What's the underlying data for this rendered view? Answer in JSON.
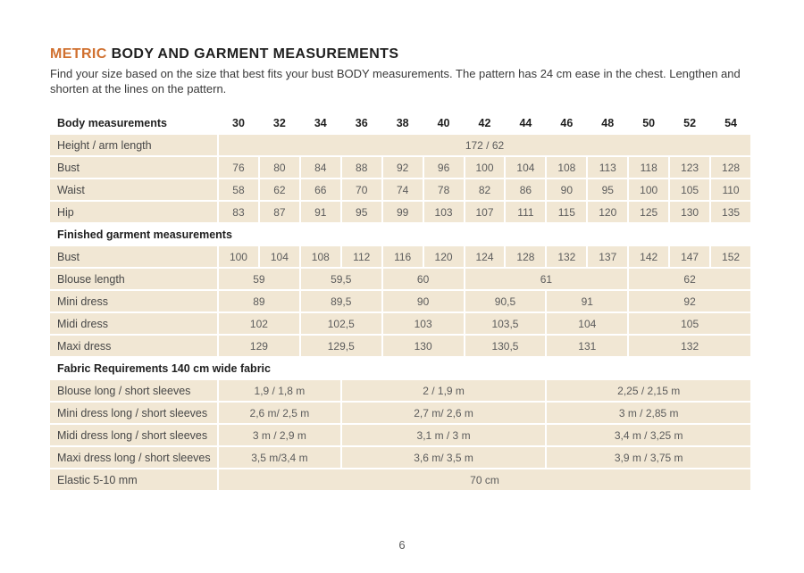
{
  "header": {
    "title_accent": "METRIC",
    "title_main": " BODY AND GARMENT MEASUREMENTS",
    "subtitle": "Find your size based on the size that best fits your bust BODY measurements. The pattern has 24 cm ease in the chest. Lengthen and shorten at the lines on the pattern."
  },
  "colors": {
    "accent_orange": "#d0702f",
    "row_beige": "#f1e7d4",
    "heading_ink": "#1f1f1f",
    "label_ink": "#474747",
    "value_ink": "#5c5c5c"
  },
  "sizes_header": {
    "label": "Body measurements",
    "sizes": [
      "30",
      "32",
      "34",
      "36",
      "38",
      "40",
      "42",
      "44",
      "46",
      "48",
      "50",
      "52",
      "54"
    ]
  },
  "body": {
    "height_label": "Height / arm length",
    "height_value": "172 / 62",
    "bust_label": "Bust",
    "bust": [
      "76",
      "80",
      "84",
      "88",
      "92",
      "96",
      "100",
      "104",
      "108",
      "113",
      "118",
      "123",
      "128"
    ],
    "waist_label": "Waist",
    "waist": [
      "58",
      "62",
      "66",
      "70",
      "74",
      "78",
      "82",
      "86",
      "90",
      "95",
      "100",
      "105",
      "110"
    ],
    "hip_label": "Hip",
    "hip": [
      "83",
      "87",
      "91",
      "95",
      "99",
      "103",
      "107",
      "111",
      "115",
      "120",
      "125",
      "130",
      "135"
    ]
  },
  "garment": {
    "section_label": "Finished garment measurements",
    "bust_label": "Bust",
    "bust": [
      "100",
      "104",
      "108",
      "112",
      "116",
      "120",
      "124",
      "128",
      "132",
      "137",
      "142",
      "147",
      "152"
    ],
    "blouse_label": "Blouse length",
    "blouse": [
      "59",
      "59,5",
      "60",
      "61",
      "62"
    ],
    "mini_label": "Mini dress",
    "mini": [
      "89",
      "89,5",
      "90",
      "90,5",
      "91",
      "92"
    ],
    "midi_label": "Midi dress",
    "midi": [
      "102",
      "102,5",
      "103",
      "103,5",
      "104",
      "105"
    ],
    "maxi_label": "Maxi dress",
    "maxi": [
      "129",
      "129,5",
      "130",
      "130,5",
      "131",
      "132"
    ]
  },
  "fabric": {
    "section_label": "Fabric Requirements 140 cm wide fabric",
    "blouse_label": "Blouse long / short sleeves",
    "blouse": [
      "1,9 / 1,8 m",
      "2 / 1,9 m",
      "2,25 / 2,15 m"
    ],
    "mini_label": "Mini dress long / short sleeves",
    "mini": [
      "2,6 m/ 2,5 m",
      "2,7 m/ 2,6 m",
      "3 m / 2,85 m"
    ],
    "midi_label": "Midi dress long / short sleeves",
    "midi": [
      "3 m / 2,9 m",
      "3,1 m / 3 m",
      "3,4 m / 3,25 m"
    ],
    "maxi_label": "Maxi dress long / short sleeves",
    "maxi": [
      "3,5 m/3,4 m",
      "3,6 m/ 3,5 m",
      "3,9 m / 3,75 m"
    ],
    "elastic_label": "Elastic 5-10 mm",
    "elastic_value": "70 cm"
  },
  "footer": {
    "page_number": "6"
  }
}
